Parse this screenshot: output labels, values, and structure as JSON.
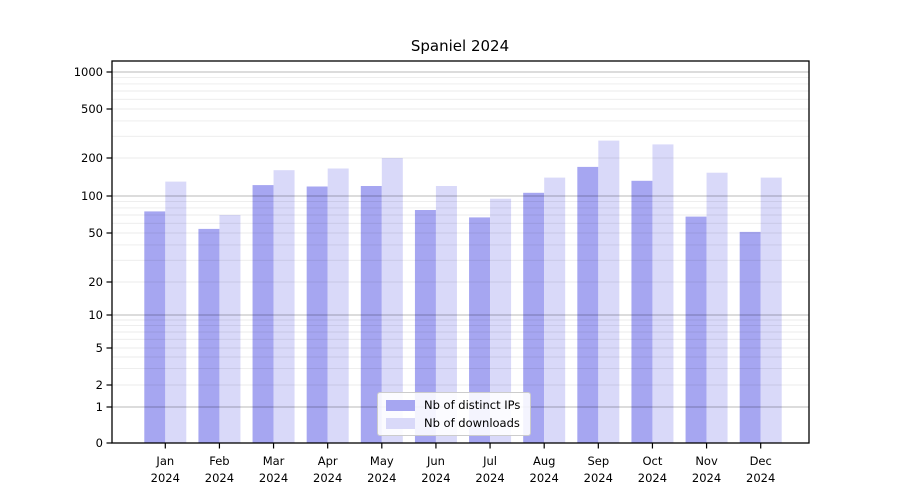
{
  "title": "Spaniel 2024",
  "colors": {
    "distinct_ips": "#a6a6f1",
    "downloads": "#d9d9f9",
    "grid_major": "rgba(0,0,0,0.28)",
    "grid_minor": "rgba(0,0,0,0.08)",
    "axis": "#000000",
    "legend_border": "#cccccc",
    "legend_background": "rgba(255,255,255,0.88)",
    "text": "#000000"
  },
  "legend": {
    "items": [
      {
        "label": "Nb of distinct IPs",
        "color_key": "distinct_ips"
      },
      {
        "label": "Nb of downloads",
        "color_key": "downloads"
      }
    ]
  },
  "y_axis": {
    "tick_values": [
      0,
      1,
      2,
      5,
      10,
      20,
      50,
      100,
      200,
      500,
      1000
    ],
    "tick_labels": [
      "0",
      "1",
      "2",
      "5",
      "10",
      "20",
      "50",
      "100",
      "200",
      "500",
      "1000"
    ]
  },
  "x_axis": {
    "tick_labels_line1": [
      "Jan",
      "Feb",
      "Mar",
      "Apr",
      "May",
      "Jun",
      "Jul",
      "Aug",
      "Sep",
      "Oct",
      "Nov",
      "Dec"
    ],
    "tick_labels_line2": [
      "2024",
      "2024",
      "2024",
      "2024",
      "2024",
      "2024",
      "2024",
      "2024",
      "2024",
      "2024",
      "2024",
      "2024"
    ]
  },
  "chart_data": {
    "type": "bar",
    "title": "Spaniel 2024",
    "categories": [
      "Jan 2024",
      "Feb 2024",
      "Mar 2024",
      "Apr 2024",
      "May 2024",
      "Jun 2024",
      "Jul 2024",
      "Aug 2024",
      "Sep 2024",
      "Oct 2024",
      "Nov 2024",
      "Dec 2024"
    ],
    "series": [
      {
        "name": "Nb of distinct IPs",
        "values": [
          75,
          54,
          122,
          119,
          120,
          77,
          67,
          106,
          170,
          132,
          68,
          51
        ]
      },
      {
        "name": "Nb of downloads",
        "values": [
          130,
          70,
          160,
          165,
          200,
          120,
          95,
          140,
          277,
          258,
          153,
          140
        ]
      }
    ],
    "yscale": "symlog",
    "yticks": [
      0,
      1,
      2,
      5,
      10,
      20,
      50,
      100,
      200,
      500,
      1000
    ],
    "ylim": [
      0,
      1400
    ],
    "grid": "both, drawn above bars",
    "legend_position": "lower center"
  }
}
